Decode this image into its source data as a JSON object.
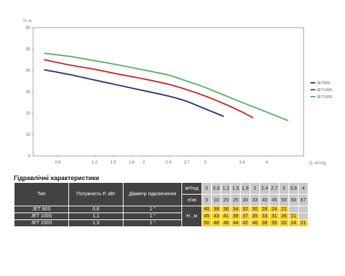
{
  "chart_data": {
    "type": "line",
    "title": "",
    "ylabel": "H, м",
    "xlabel": "Q, м³/год",
    "xlim": [
      0.2,
      4.6
    ],
    "ylim": [
      0,
      60
    ],
    "x_ticks": [
      "0.6",
      "1.2",
      "1.5",
      "1.8",
      "2",
      "2.4",
      "2.7",
      "3",
      "3.6",
      "4"
    ],
    "y_ticks": [
      "10",
      "20",
      "30",
      "40",
      "50",
      "60"
    ],
    "y_zero_label": "0",
    "grid": false,
    "legend_position": "right",
    "series": [
      {
        "name": "JET80S",
        "color": "#2e3c72",
        "x": [
          0.38,
          0.8,
          1.2,
          1.6,
          2.0,
          2.4,
          2.7,
          3.0,
          3.3
        ],
        "y": [
          40.3,
          38.0,
          35.5,
          33.0,
          30.5,
          28.0,
          25.5,
          22.0,
          18.5
        ]
      },
      {
        "name": "JET100S",
        "color": "#c62e2e",
        "x": [
          0.38,
          0.8,
          1.2,
          1.6,
          2.0,
          2.4,
          2.7,
          3.0,
          3.3,
          3.6,
          3.78
        ],
        "y": [
          45.0,
          42.5,
          40.5,
          38.2,
          36.0,
          33.5,
          31.0,
          28.0,
          24.5,
          20.5,
          17.8
        ]
      },
      {
        "name": "JET150S",
        "color": "#5fb36a",
        "x": [
          0.38,
          0.8,
          1.2,
          1.6,
          2.0,
          2.4,
          2.7,
          3.0,
          3.3,
          3.6,
          4.0,
          4.35
        ],
        "y": [
          48.0,
          46.5,
          44.5,
          42.5,
          40.2,
          37.8,
          35.0,
          32.0,
          28.5,
          25.0,
          20.5,
          16.5
        ]
      }
    ]
  },
  "table": {
    "title": "Гідравлічні характеристики",
    "headers": {
      "type": "Тип",
      "power": "Потужність  P, кВт",
      "diameter": "Діаметр підключення",
      "flow_unit_m3": "м³/год",
      "flow_unit_l": "л/хв",
      "head_unit": "Н , м"
    },
    "flow_m3": [
      "0",
      "0,6",
      "1,2",
      "1,5",
      "1,8",
      "2",
      "2,4",
      "2,7",
      "3",
      "3,6",
      "4"
    ],
    "flow_l": [
      "0",
      "10",
      "20",
      "25",
      "30",
      "33",
      "40",
      "45",
      "50",
      "60",
      "67"
    ],
    "rows": [
      {
        "type": "JET 80S",
        "power": "0,8",
        "diameter": "1 \"",
        "heads": [
          "40",
          "38",
          "36",
          "34",
          "32",
          "30",
          "28",
          "24",
          "21",
          "",
          ""
        ]
      },
      {
        "type": "JET 100S",
        "power": "1,1",
        "diameter": "1 \"",
        "heads": [
          "45",
          "43",
          "41",
          "39",
          "37",
          "35",
          "33",
          "31",
          "26",
          "21",
          ""
        ]
      },
      {
        "type": "JET 150S",
        "power": "1,3",
        "diameter": "1 \"",
        "heads": [
          "50",
          "48",
          "46",
          "44",
          "42",
          "40",
          "38",
          "35",
          "32",
          "24",
          "21"
        ]
      }
    ]
  }
}
